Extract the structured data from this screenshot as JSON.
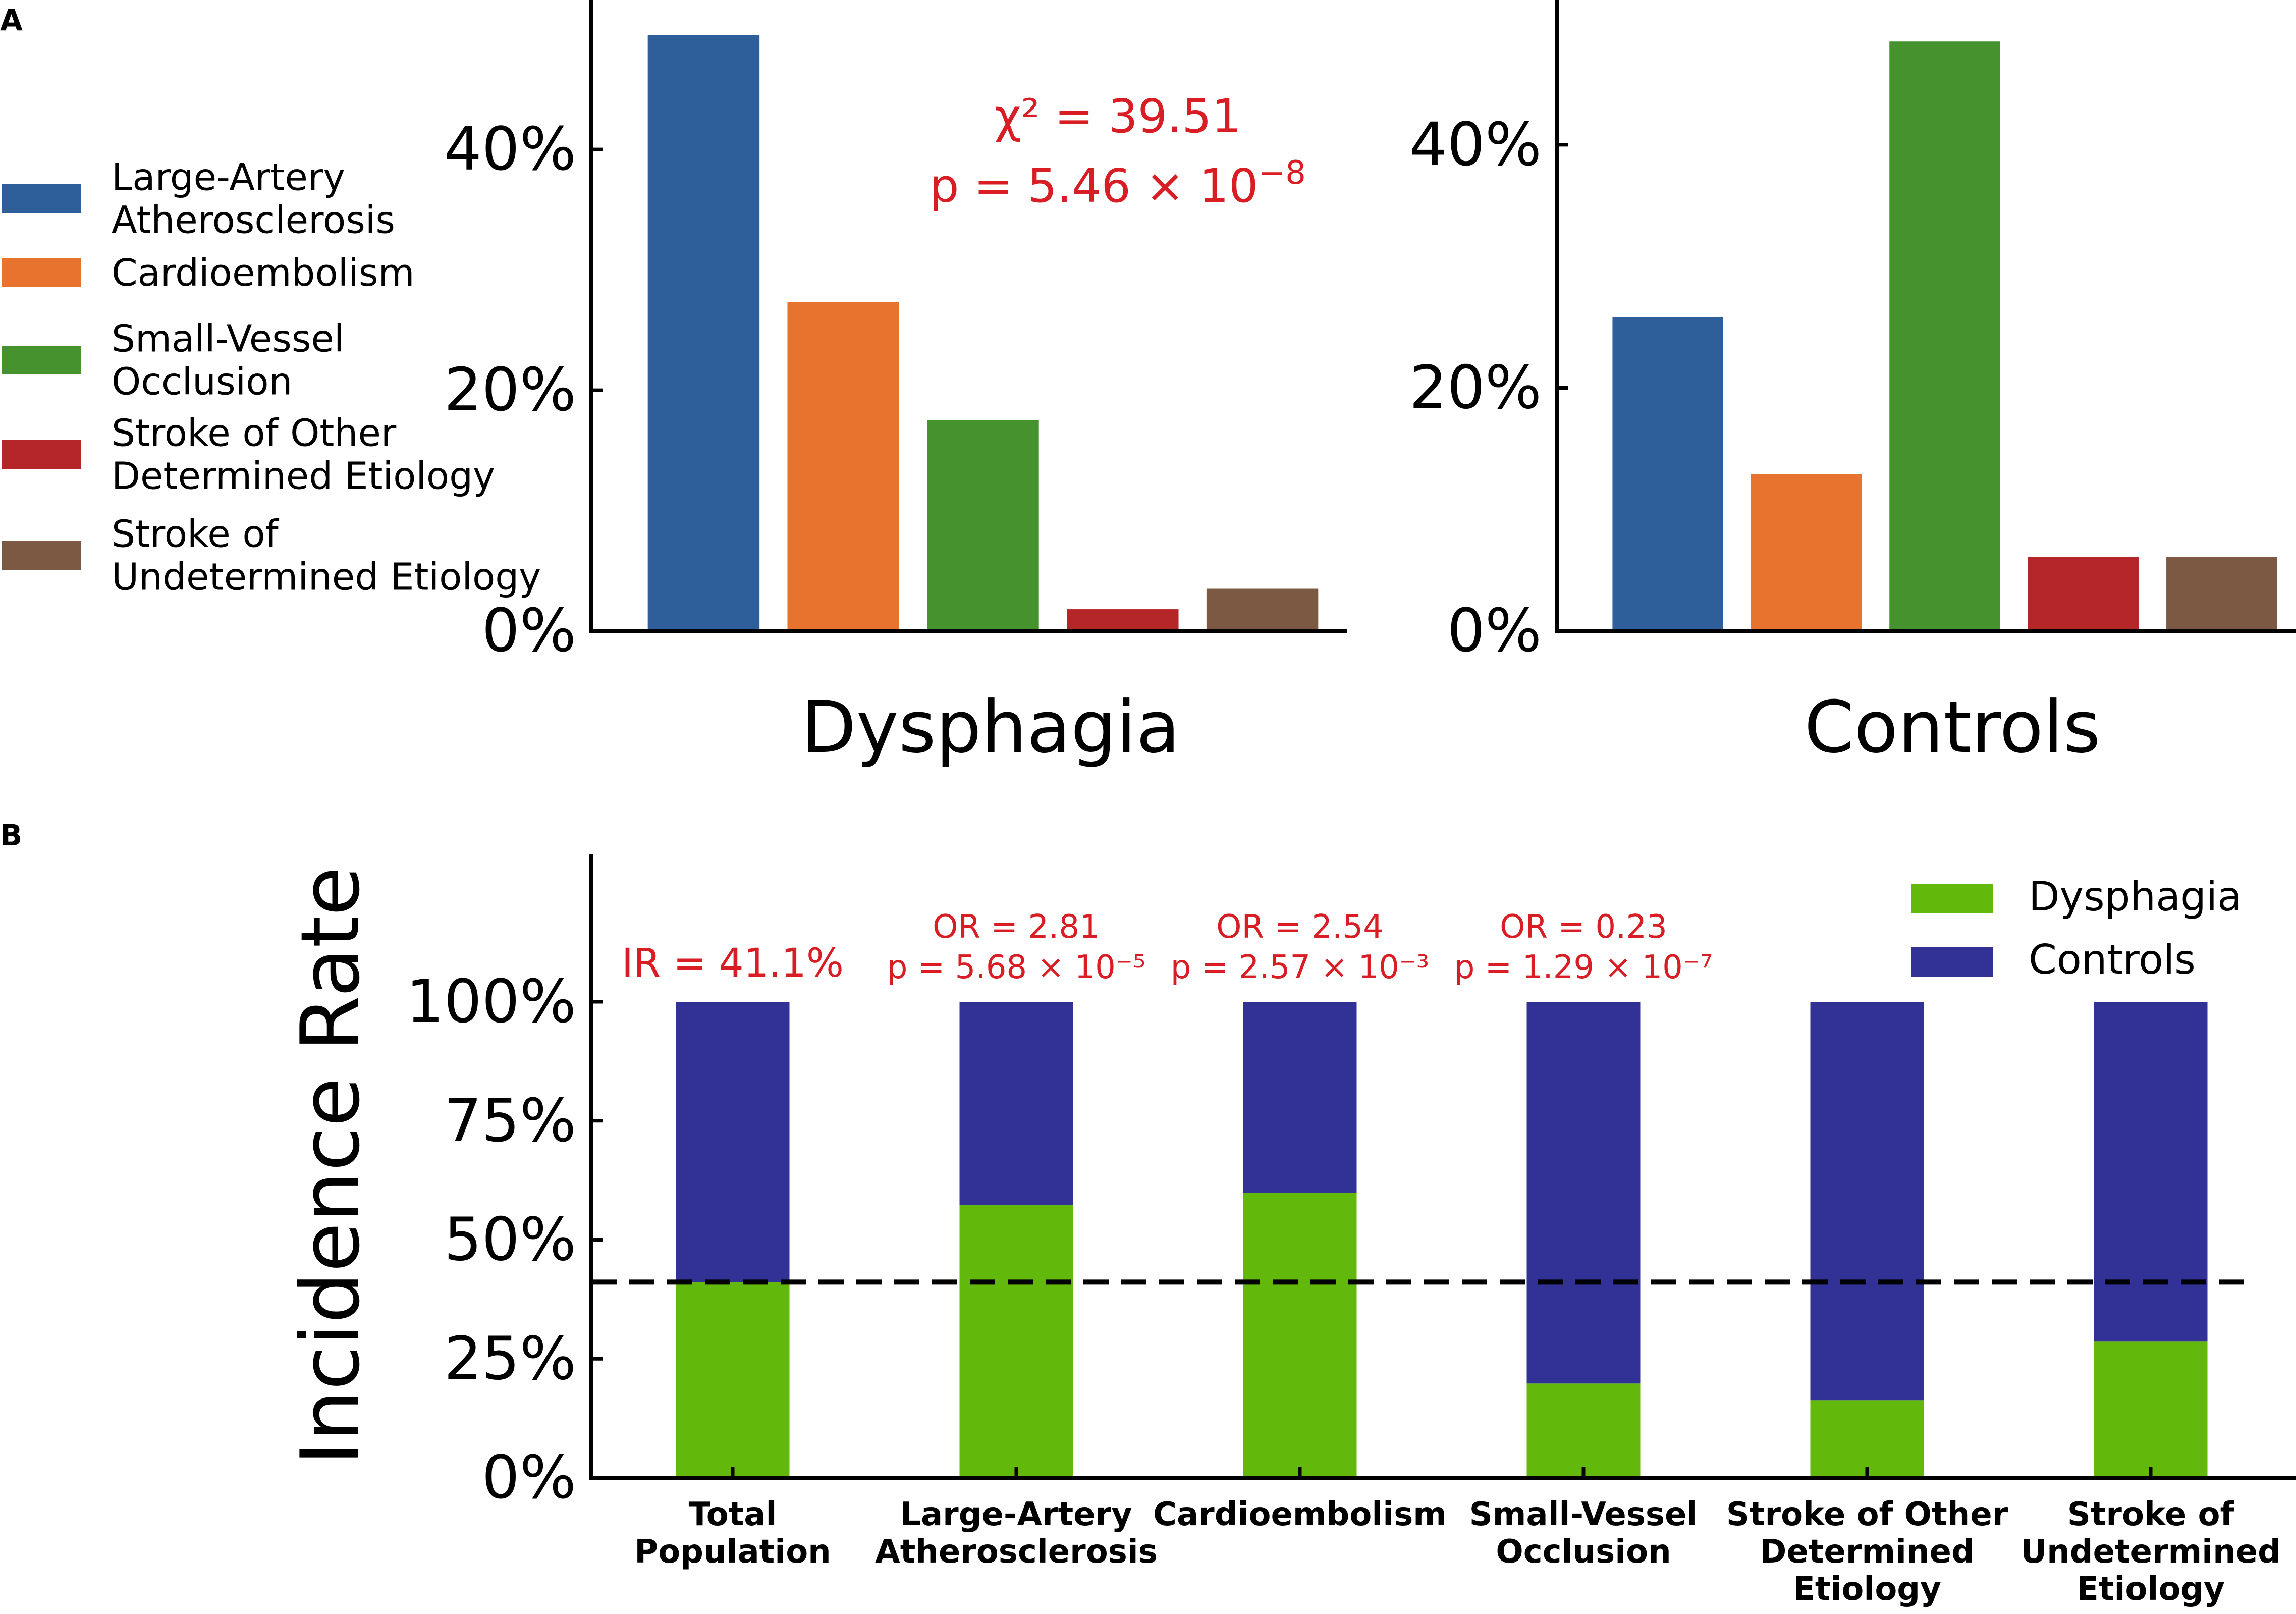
{
  "panel_labels": {
    "a": "A",
    "b": "B"
  },
  "legend_a": [
    {
      "lines": [
        "Large-Artery",
        "Atherosclerosis"
      ],
      "color": "#2e5f9b"
    },
    {
      "lines": [
        "Cardioembolism"
      ],
      "color": "#e8732f"
    },
    {
      "lines": [
        "Small-Vessel",
        "Occlusion"
      ],
      "color": "#46922f"
    },
    {
      "lines": [
        "Stroke of Other",
        "Determined Etiology"
      ],
      "color": "#b42628"
    },
    {
      "lines": [
        "Stroke of",
        "Undetermined Etiology"
      ],
      "color": "#7b5943"
    }
  ],
  "annotation_a": {
    "chi_line": "χ² = 39.51",
    "p_base": "p = 5.46 × 10",
    "p_exp": "−8"
  },
  "annotation_b": [
    {
      "lines": [
        "IR = 41.1%"
      ]
    },
    {
      "lines": [
        "OR = 2.81",
        "p = 5.68 × 10⁻⁵"
      ]
    },
    {
      "lines": [
        "OR = 2.54",
        "p = 2.57 × 10⁻³"
      ]
    },
    {
      "lines": [
        "OR = 0.23",
        "p = 1.29 × 10⁻⁷"
      ]
    }
  ],
  "colors": {
    "annotation": "#d81e24",
    "dysphagia_b": "#63b90b",
    "controls_b": "#323296",
    "axis": "#000000"
  },
  "chart_data": [
    {
      "type": "bar",
      "title": "Dysphagia",
      "categories": [
        "Large-Artery Atherosclerosis",
        "Cardioembolism",
        "Small-Vessel Occlusion",
        "Stroke of Other Determined Etiology",
        "Stroke of Undetermined Etiology"
      ],
      "values": [
        49.5,
        27.3,
        17.5,
        1.8,
        3.5
      ],
      "ylim": [
        0,
        52
      ],
      "yticks": [
        0,
        20,
        40
      ],
      "ytick_labels": [
        "0%",
        "20%",
        "40%"
      ],
      "xlabel": "Dysphagia",
      "ylabel": ""
    },
    {
      "type": "bar",
      "title": "Controls",
      "categories": [
        "Large-Artery Atherosclerosis",
        "Cardioembolism",
        "Small-Vessel Occlusion",
        "Stroke of Other Determined Etiology",
        "Stroke of Undetermined Etiology"
      ],
      "values": [
        25.8,
        12.9,
        48.5,
        6.1,
        6.1
      ],
      "ylim": [
        0,
        51.5
      ],
      "yticks": [
        0,
        20,
        40
      ],
      "ytick_labels": [
        "0%",
        "20%",
        "40%"
      ],
      "xlabel": "Controls",
      "ylabel": ""
    },
    {
      "type": "bar",
      "stacked": true,
      "title": "",
      "categories": [
        [
          "Total",
          "Population"
        ],
        [
          "Large-Artery",
          "Atherosclerosis"
        ],
        [
          "Cardioembolism"
        ],
        [
          "Small-Vessel",
          "Occlusion"
        ],
        [
          "Stroke of Other",
          "Determined",
          "Etiology"
        ],
        [
          "Stroke of",
          "Undetermined",
          "Etiology"
        ]
      ],
      "series": [
        {
          "name": "Dysphagia",
          "values": [
            41.1,
            57.3,
            59.9,
            19.8,
            16.3,
            28.6
          ]
        },
        {
          "name": "Controls",
          "values": [
            58.9,
            42.7,
            40.1,
            80.2,
            83.7,
            71.4
          ]
        }
      ],
      "reference_line": {
        "y": 41.1,
        "style": "dashed"
      },
      "ylim": [
        0,
        130
      ],
      "yticks": [
        0,
        25,
        50,
        75,
        100
      ],
      "ytick_labels": [
        "0%",
        "25%",
        "50%",
        "75%",
        "100%"
      ],
      "xlabel": "",
      "ylabel": "Incidence Rate",
      "legend": {
        "position": "top-right",
        "labels": [
          "Dysphagia",
          "Controls"
        ]
      }
    }
  ]
}
